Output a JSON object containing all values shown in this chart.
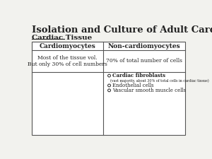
{
  "title": "Isolation and Culture of Adult Cardiac Cells",
  "subtitle": "Cardiac Tissue",
  "col1_header": "Cardiomyocytes",
  "col2_header": "Non-cardiomyocytes",
  "col1_row1": "Most of the tissue vol.\nBut only 30% of cell numbers",
  "col2_row1": "70% of total number of cells",
  "col2_row2_items": [
    {
      "text": "Cardiac fibroblasts",
      "bold": true
    },
    {
      "text": "(vast majority, about 30% of total cells in cardiac tissue)",
      "bold": false
    },
    {
      "text": "Endothelial cells",
      "bold": false
    },
    {
      "text": "Vascular smooth muscle cells",
      "bold": false
    }
  ],
  "bg_color": "#f2f2ee",
  "table_bg": "#ffffff",
  "border_color": "#555555",
  "text_color": "#222222"
}
